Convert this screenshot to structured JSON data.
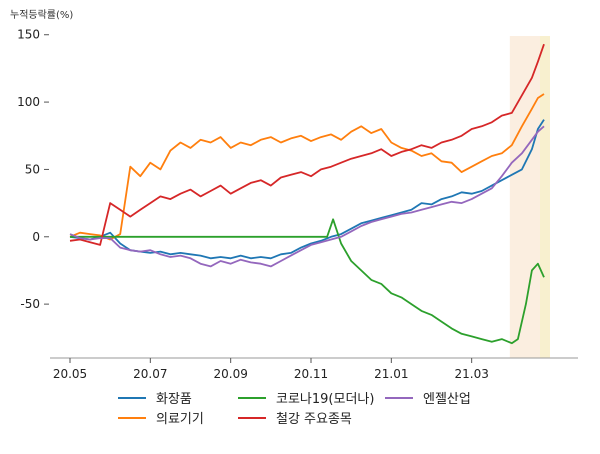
{
  "chart_data": {
    "type": "line",
    "ylabel": "누적등락률(%)",
    "ylim": [
      -90,
      155
    ],
    "yticks": [
      150,
      100,
      50,
      0,
      -50
    ],
    "ytick_labels": [
      "150",
      "100",
      "50",
      "0",
      "-50"
    ],
    "xlim": [
      0,
      24
    ],
    "xticks": [
      0,
      4,
      8,
      12,
      16,
      20
    ],
    "xtick_labels": [
      "20.05",
      "20.07",
      "20.09",
      "20.11",
      "21.01",
      "21.03"
    ],
    "grid": false,
    "legend_position": "bottom",
    "highlight_regions": [
      {
        "x0": 21.9,
        "x1": 23.4,
        "color": "#fbeee0"
      },
      {
        "x0": 23.4,
        "x1": 23.9,
        "color": "#f8f0cf"
      }
    ],
    "series": [
      {
        "name": "화장품",
        "color": "#1f77b4",
        "points": [
          [
            0,
            0
          ],
          [
            0.5,
            -1
          ],
          [
            1,
            -2
          ],
          [
            1.5,
            0
          ],
          [
            2,
            3
          ],
          [
            2.5,
            -5
          ],
          [
            3,
            -10
          ],
          [
            3.5,
            -11
          ],
          [
            4,
            -12
          ],
          [
            4.5,
            -11
          ],
          [
            5,
            -13
          ],
          [
            5.5,
            -12
          ],
          [
            6,
            -13
          ],
          [
            6.5,
            -14
          ],
          [
            7,
            -16
          ],
          [
            7.5,
            -15
          ],
          [
            8,
            -16
          ],
          [
            8.5,
            -14
          ],
          [
            9,
            -16
          ],
          [
            9.5,
            -15
          ],
          [
            10,
            -16
          ],
          [
            10.5,
            -13
          ],
          [
            11,
            -12
          ],
          [
            11.5,
            -8
          ],
          [
            12,
            -5
          ],
          [
            12.5,
            -3
          ],
          [
            13,
            0
          ],
          [
            13.5,
            2
          ],
          [
            14,
            6
          ],
          [
            14.5,
            10
          ],
          [
            15,
            12
          ],
          [
            15.5,
            14
          ],
          [
            16,
            16
          ],
          [
            16.5,
            18
          ],
          [
            17,
            20
          ],
          [
            17.5,
            25
          ],
          [
            18,
            24
          ],
          [
            18.5,
            28
          ],
          [
            19,
            30
          ],
          [
            19.5,
            33
          ],
          [
            20,
            32
          ],
          [
            20.5,
            34
          ],
          [
            21,
            38
          ],
          [
            21.5,
            42
          ],
          [
            22,
            46
          ],
          [
            22.5,
            50
          ],
          [
            23,
            65
          ],
          [
            23.3,
            80
          ],
          [
            23.6,
            87
          ]
        ]
      },
      {
        "name": "의료기기",
        "color": "#ff7f0e",
        "points": [
          [
            0,
            0
          ],
          [
            0.5,
            3
          ],
          [
            1,
            2
          ],
          [
            1.5,
            1
          ],
          [
            2,
            -2
          ],
          [
            2.5,
            2
          ],
          [
            3,
            52
          ],
          [
            3.5,
            45
          ],
          [
            4,
            55
          ],
          [
            4.5,
            50
          ],
          [
            5,
            64
          ],
          [
            5.5,
            70
          ],
          [
            6,
            66
          ],
          [
            6.5,
            72
          ],
          [
            7,
            70
          ],
          [
            7.5,
            74
          ],
          [
            8,
            66
          ],
          [
            8.5,
            70
          ],
          [
            9,
            68
          ],
          [
            9.5,
            72
          ],
          [
            10,
            74
          ],
          [
            10.5,
            70
          ],
          [
            11,
            73
          ],
          [
            11.5,
            75
          ],
          [
            12,
            71
          ],
          [
            12.5,
            74
          ],
          [
            13,
            76
          ],
          [
            13.5,
            72
          ],
          [
            14,
            78
          ],
          [
            14.5,
            82
          ],
          [
            15,
            77
          ],
          [
            15.5,
            80
          ],
          [
            16,
            70
          ],
          [
            16.5,
            66
          ],
          [
            17,
            64
          ],
          [
            17.5,
            60
          ],
          [
            18,
            62
          ],
          [
            18.5,
            56
          ],
          [
            19,
            55
          ],
          [
            19.5,
            48
          ],
          [
            20,
            52
          ],
          [
            20.5,
            56
          ],
          [
            21,
            60
          ],
          [
            21.5,
            62
          ],
          [
            22,
            68
          ],
          [
            22.5,
            82
          ],
          [
            23,
            95
          ],
          [
            23.3,
            103
          ],
          [
            23.6,
            106
          ]
        ]
      },
      {
        "name": "코로나19(모더나)",
        "color": "#2ca02c",
        "points": [
          [
            0,
            0
          ],
          [
            1,
            0
          ],
          [
            2,
            0
          ],
          [
            3,
            0
          ],
          [
            4,
            0
          ],
          [
            5,
            0
          ],
          [
            6,
            0
          ],
          [
            7,
            0
          ],
          [
            8,
            0
          ],
          [
            9,
            0
          ],
          [
            10,
            0
          ],
          [
            11,
            0
          ],
          [
            12,
            0
          ],
          [
            12.8,
            0
          ],
          [
            13.1,
            13
          ],
          [
            13.5,
            -5
          ],
          [
            14,
            -18
          ],
          [
            14.5,
            -25
          ],
          [
            15,
            -32
          ],
          [
            15.5,
            -35
          ],
          [
            16,
            -42
          ],
          [
            16.5,
            -45
          ],
          [
            17,
            -50
          ],
          [
            17.5,
            -55
          ],
          [
            18,
            -58
          ],
          [
            18.5,
            -63
          ],
          [
            19,
            -68
          ],
          [
            19.5,
            -72
          ],
          [
            20,
            -74
          ],
          [
            20.5,
            -76
          ],
          [
            21,
            -78
          ],
          [
            21.5,
            -76
          ],
          [
            22,
            -79
          ],
          [
            22.3,
            -76
          ],
          [
            22.7,
            -50
          ],
          [
            23,
            -25
          ],
          [
            23.3,
            -20
          ],
          [
            23.6,
            -30
          ]
        ]
      },
      {
        "name": "철강 주요종목",
        "color": "#d62728",
        "points": [
          [
            0,
            -3
          ],
          [
            0.5,
            -2
          ],
          [
            1,
            -4
          ],
          [
            1.5,
            -6
          ],
          [
            2,
            25
          ],
          [
            2.5,
            20
          ],
          [
            3,
            15
          ],
          [
            3.5,
            20
          ],
          [
            4,
            25
          ],
          [
            4.5,
            30
          ],
          [
            5,
            28
          ],
          [
            5.5,
            32
          ],
          [
            6,
            35
          ],
          [
            6.5,
            30
          ],
          [
            7,
            34
          ],
          [
            7.5,
            38
          ],
          [
            8,
            32
          ],
          [
            8.5,
            36
          ],
          [
            9,
            40
          ],
          [
            9.5,
            42
          ],
          [
            10,
            38
          ],
          [
            10.5,
            44
          ],
          [
            11,
            46
          ],
          [
            11.5,
            48
          ],
          [
            12,
            45
          ],
          [
            12.5,
            50
          ],
          [
            13,
            52
          ],
          [
            13.5,
            55
          ],
          [
            14,
            58
          ],
          [
            14.5,
            60
          ],
          [
            15,
            62
          ],
          [
            15.5,
            65
          ],
          [
            16,
            60
          ],
          [
            16.5,
            63
          ],
          [
            17,
            65
          ],
          [
            17.5,
            68
          ],
          [
            18,
            66
          ],
          [
            18.5,
            70
          ],
          [
            19,
            72
          ],
          [
            19.5,
            75
          ],
          [
            20,
            80
          ],
          [
            20.5,
            82
          ],
          [
            21,
            85
          ],
          [
            21.5,
            90
          ],
          [
            22,
            92
          ],
          [
            22.5,
            105
          ],
          [
            23,
            118
          ],
          [
            23.3,
            130
          ],
          [
            23.6,
            143
          ]
        ]
      },
      {
        "name": "엔젤산업",
        "color": "#9467bd",
        "points": [
          [
            0,
            2
          ],
          [
            0.5,
            -1
          ],
          [
            1,
            -2
          ],
          [
            1.5,
            -1
          ],
          [
            2,
            -1
          ],
          [
            2.5,
            -8
          ],
          [
            3,
            -10
          ],
          [
            3.5,
            -11
          ],
          [
            4,
            -10
          ],
          [
            4.5,
            -13
          ],
          [
            5,
            -15
          ],
          [
            5.5,
            -14
          ],
          [
            6,
            -16
          ],
          [
            6.5,
            -20
          ],
          [
            7,
            -22
          ],
          [
            7.5,
            -18
          ],
          [
            8,
            -20
          ],
          [
            8.5,
            -17
          ],
          [
            9,
            -19
          ],
          [
            9.5,
            -20
          ],
          [
            10,
            -22
          ],
          [
            10.5,
            -18
          ],
          [
            11,
            -14
          ],
          [
            11.5,
            -10
          ],
          [
            12,
            -6
          ],
          [
            12.5,
            -4
          ],
          [
            13,
            -2
          ],
          [
            13.5,
            0
          ],
          [
            14,
            4
          ],
          [
            14.5,
            8
          ],
          [
            15,
            11
          ],
          [
            15.5,
            13
          ],
          [
            16,
            15
          ],
          [
            16.5,
            17
          ],
          [
            17,
            18
          ],
          [
            17.5,
            20
          ],
          [
            18,
            22
          ],
          [
            18.5,
            24
          ],
          [
            19,
            26
          ],
          [
            19.5,
            25
          ],
          [
            20,
            28
          ],
          [
            20.5,
            32
          ],
          [
            21,
            36
          ],
          [
            21.5,
            45
          ],
          [
            22,
            55
          ],
          [
            22.5,
            62
          ],
          [
            23,
            72
          ],
          [
            23.3,
            78
          ],
          [
            23.6,
            82
          ]
        ]
      }
    ]
  }
}
